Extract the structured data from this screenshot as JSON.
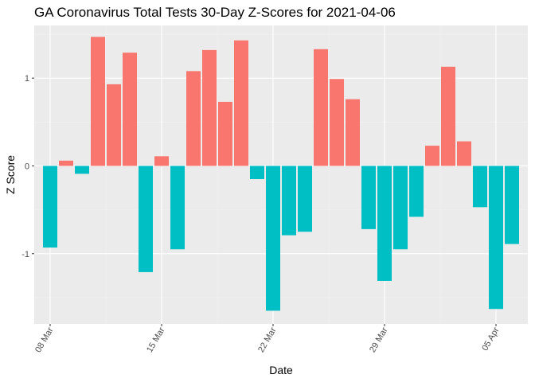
{
  "chart_data": {
    "type": "bar",
    "title": "GA Coronavirus Total Tests 30-Day Z-Scores for 2021-04-06",
    "xlabel": "Date",
    "ylabel": "Z Score",
    "x": [
      "2021-03-08",
      "2021-03-09",
      "2021-03-10",
      "2021-03-11",
      "2021-03-12",
      "2021-03-13",
      "2021-03-14",
      "2021-03-15",
      "2021-03-16",
      "2021-03-17",
      "2021-03-18",
      "2021-03-19",
      "2021-03-20",
      "2021-03-21",
      "2021-03-22",
      "2021-03-23",
      "2021-03-24",
      "2021-03-25",
      "2021-03-26",
      "2021-03-27",
      "2021-03-28",
      "2021-03-29",
      "2021-03-30",
      "2021-03-31",
      "2021-04-01",
      "2021-04-02",
      "2021-04-03",
      "2021-04-04",
      "2021-04-05",
      "2021-04-06"
    ],
    "values": [
      -0.93,
      0.06,
      -0.09,
      1.47,
      0.93,
      1.29,
      -1.21,
      0.11,
      -0.95,
      1.08,
      1.32,
      0.73,
      1.43,
      -0.15,
      -1.65,
      -0.79,
      -0.75,
      1.33,
      0.99,
      0.76,
      -0.72,
      -1.31,
      -0.95,
      -0.58,
      0.23,
      1.13,
      0.28,
      -0.47,
      -1.63,
      -0.89
    ],
    "x_ticks": [
      {
        "date": "2021-03-08",
        "label": "08 Mar"
      },
      {
        "date": "2021-03-15",
        "label": "15 Mar"
      },
      {
        "date": "2021-03-22",
        "label": "22 Mar"
      },
      {
        "date": "2021-03-29",
        "label": "29 Mar"
      },
      {
        "date": "2021-04-05",
        "label": "05 Apr"
      }
    ],
    "y_ticks": [
      -1,
      0,
      1
    ],
    "ylim": [
      -1.8,
      1.6
    ],
    "xlim": [
      "2021-03-07",
      "2021-04-07"
    ],
    "grid": true,
    "legend": "none",
    "colors": {
      "positive": "#F8766D",
      "negative": "#00BFC4",
      "panel": "#EBEBEB",
      "grid_major": "#FFFFFF",
      "grid_minor": "#F2F2F2",
      "axis_text": "#4D4D4D",
      "tick": "#333333"
    }
  }
}
